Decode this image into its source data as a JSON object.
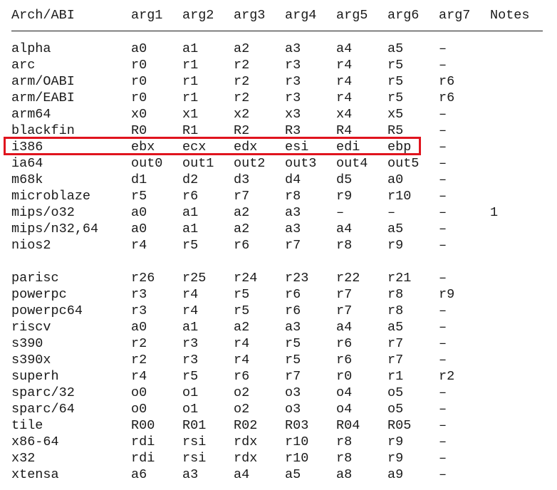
{
  "header": {
    "cells": [
      "Arch/ABI",
      "arg1",
      "arg2",
      "arg3",
      "arg4",
      "arg5",
      "arg6",
      "arg7",
      "Notes"
    ]
  },
  "rows": [
    {
      "arch": "alpha",
      "args": [
        "a0",
        "a1",
        "a2",
        "a3",
        "a4",
        "a5",
        "–"
      ],
      "note": ""
    },
    {
      "arch": "arc",
      "args": [
        "r0",
        "r1",
        "r2",
        "r3",
        "r4",
        "r5",
        "–"
      ],
      "note": ""
    },
    {
      "arch": "arm/OABI",
      "args": [
        "r0",
        "r1",
        "r2",
        "r3",
        "r4",
        "r5",
        "r6"
      ],
      "note": ""
    },
    {
      "arch": "arm/EABI",
      "args": [
        "r0",
        "r1",
        "r2",
        "r3",
        "r4",
        "r5",
        "r6"
      ],
      "note": ""
    },
    {
      "arch": "arm64",
      "args": [
        "x0",
        "x1",
        "x2",
        "x3",
        "x4",
        "x5",
        "–"
      ],
      "note": ""
    },
    {
      "arch": "blackfin",
      "args": [
        "R0",
        "R1",
        "R2",
        "R3",
        "R4",
        "R5",
        "–"
      ],
      "note": ""
    },
    {
      "arch": "i386",
      "args": [
        "ebx",
        "ecx",
        "edx",
        "esi",
        "edi",
        "ebp",
        "–"
      ],
      "note": "",
      "highlighted": true
    },
    {
      "arch": "ia64",
      "args": [
        "out0",
        "out1",
        "out2",
        "out3",
        "out4",
        "out5",
        "–"
      ],
      "note": ""
    },
    {
      "arch": "m68k",
      "args": [
        "d1",
        "d2",
        "d3",
        "d4",
        "d5",
        "a0",
        "–"
      ],
      "note": ""
    },
    {
      "arch": "microblaze",
      "args": [
        "r5",
        "r6",
        "r7",
        "r8",
        "r9",
        "r10",
        "–"
      ],
      "note": ""
    },
    {
      "arch": "mips/o32",
      "args": [
        "a0",
        "a1",
        "a2",
        "a3",
        "–",
        "–",
        "–"
      ],
      "note": "1"
    },
    {
      "arch": "mips/n32,64",
      "args": [
        "a0",
        "a1",
        "a2",
        "a3",
        "a4",
        "a5",
        "–"
      ],
      "note": ""
    },
    {
      "arch": "nios2",
      "args": [
        "r4",
        "r5",
        "r6",
        "r7",
        "r8",
        "r9",
        "–"
      ],
      "note": ""
    },
    {
      "arch": "parisc",
      "args": [
        "r26",
        "r25",
        "r24",
        "r23",
        "r22",
        "r21",
        "–"
      ],
      "note": ""
    },
    {
      "arch": "powerpc",
      "args": [
        "r3",
        "r4",
        "r5",
        "r6",
        "r7",
        "r8",
        "r9"
      ],
      "note": ""
    },
    {
      "arch": "powerpc64",
      "args": [
        "r3",
        "r4",
        "r5",
        "r6",
        "r7",
        "r8",
        "–"
      ],
      "note": ""
    },
    {
      "arch": "riscv",
      "args": [
        "a0",
        "a1",
        "a2",
        "a3",
        "a4",
        "a5",
        "–"
      ],
      "note": ""
    },
    {
      "arch": "s390",
      "args": [
        "r2",
        "r3",
        "r4",
        "r5",
        "r6",
        "r7",
        "–"
      ],
      "note": ""
    },
    {
      "arch": "s390x",
      "args": [
        "r2",
        "r3",
        "r4",
        "r5",
        "r6",
        "r7",
        "–"
      ],
      "note": ""
    },
    {
      "arch": "superh",
      "args": [
        "r4",
        "r5",
        "r6",
        "r7",
        "r0",
        "r1",
        "r2"
      ],
      "note": ""
    },
    {
      "arch": "sparc/32",
      "args": [
        "o0",
        "o1",
        "o2",
        "o3",
        "o4",
        "o5",
        "–"
      ],
      "note": ""
    },
    {
      "arch": "sparc/64",
      "args": [
        "o0",
        "o1",
        "o2",
        "o3",
        "o4",
        "o5",
        "–"
      ],
      "note": ""
    },
    {
      "arch": "tile",
      "args": [
        "R00",
        "R01",
        "R02",
        "R03",
        "R04",
        "R05",
        "–"
      ],
      "note": ""
    },
    {
      "arch": "x86-64",
      "args": [
        "rdi",
        "rsi",
        "rdx",
        "r10",
        "r8",
        "r9",
        "–"
      ],
      "note": ""
    },
    {
      "arch": "x32",
      "args": [
        "rdi",
        "rsi",
        "rdx",
        "r10",
        "r8",
        "r9",
        "–"
      ],
      "note": ""
    },
    {
      "arch": "xtensa",
      "args": [
        "a6",
        "a3",
        "a4",
        "a5",
        "a8",
        "a9",
        "–"
      ],
      "note": ""
    }
  ],
  "colors": {
    "text": "#1a1a1a",
    "highlight_border": "#e0141e"
  }
}
